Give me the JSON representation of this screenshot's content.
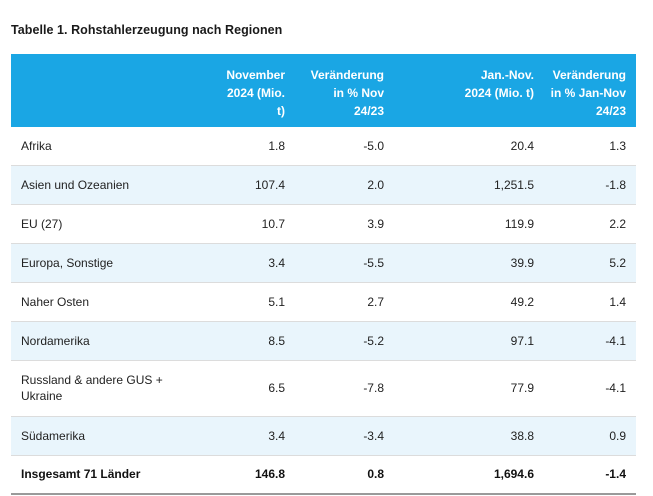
{
  "caption": "Tabelle 1. Rohstahlerzeugung nach Regionen",
  "headers": {
    "region": "",
    "nov": [
      "November",
      "2024 (Mio.",
      "t)"
    ],
    "chg1": [
      "Veränderung",
      "in % Nov",
      "24/23"
    ],
    "ytd": [
      "Jan.-Nov.",
      "2024 (Mio. t)"
    ],
    "chg2": [
      "Veränderung",
      "in % Jan-Nov",
      "24/23"
    ]
  },
  "rows": [
    {
      "region": "Afrika",
      "nov": "1.8",
      "chg1": "-5.0",
      "ytd": "20.4",
      "chg2": "1.3"
    },
    {
      "region": "Asien und Ozeanien",
      "nov": "107.4",
      "chg1": "2.0",
      "ytd": "1,251.5",
      "chg2": "-1.8"
    },
    {
      "region": "EU (27)",
      "nov": "10.7",
      "chg1": "3.9",
      "ytd": "119.9",
      "chg2": "2.2"
    },
    {
      "region": "Europa, Sonstige",
      "nov": "3.4",
      "chg1": "-5.5",
      "ytd": "39.9",
      "chg2": "5.2"
    },
    {
      "region": "Naher Osten",
      "nov": "5.1",
      "chg1": "2.7",
      "ytd": "49.2",
      "chg2": "1.4"
    },
    {
      "region": "Nordamerika",
      "nov": "8.5",
      "chg1": "-5.2",
      "ytd": "97.1",
      "chg2": "-4.1"
    },
    {
      "region_lines": [
        "Russland & andere GUS +",
        "Ukraine"
      ],
      "nov": "6.5",
      "chg1": "-7.8",
      "ytd": "77.9",
      "chg2": "-4.1"
    },
    {
      "region": "Südamerika",
      "nov": "3.4",
      "chg1": "-3.4",
      "ytd": "38.8",
      "chg2": "0.9"
    }
  ],
  "total": {
    "region": "Insgesamt 71 Länder",
    "nov": "146.8",
    "chg1": "0.8",
    "ytd": "1,694.6",
    "chg2": "-1.4"
  },
  "colors": {
    "header_bg": "#1aa6e4",
    "header_text": "#ffffff",
    "row_alt_bg": "#e9f5fc"
  }
}
